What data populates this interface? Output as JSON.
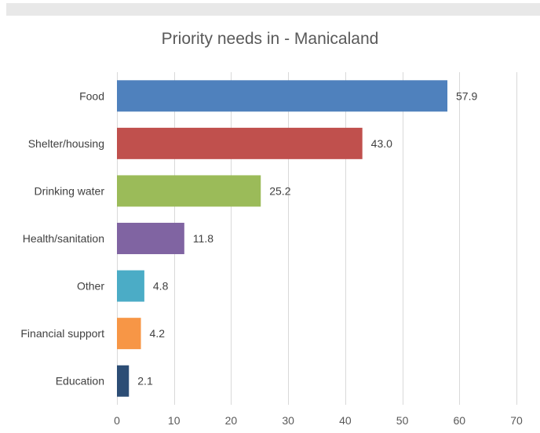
{
  "chart_data": {
    "type": "bar",
    "orientation": "horizontal",
    "title": "Priority needs in - Manicaland",
    "xlabel": "",
    "ylabel": "",
    "categories": [
      "Food",
      "Shelter/housing",
      "Drinking water",
      "Health/sanitation",
      "Other",
      "Financial support",
      "Education"
    ],
    "values": [
      57.9,
      43.0,
      25.2,
      11.8,
      4.8,
      4.2,
      2.1
    ],
    "value_labels": [
      "57.9",
      "43.0",
      "25.2",
      "11.8",
      "4.8",
      "4.2",
      "2.1"
    ],
    "colors": [
      "#4f81bd",
      "#c0504d",
      "#9bbb59",
      "#8064a2",
      "#4bacc6",
      "#f79646",
      "#2c4d75"
    ],
    "xlim": [
      0,
      70
    ],
    "xticks": [
      0,
      10,
      20,
      30,
      40,
      50,
      60,
      70
    ],
    "grid": true,
    "legend": "none"
  }
}
